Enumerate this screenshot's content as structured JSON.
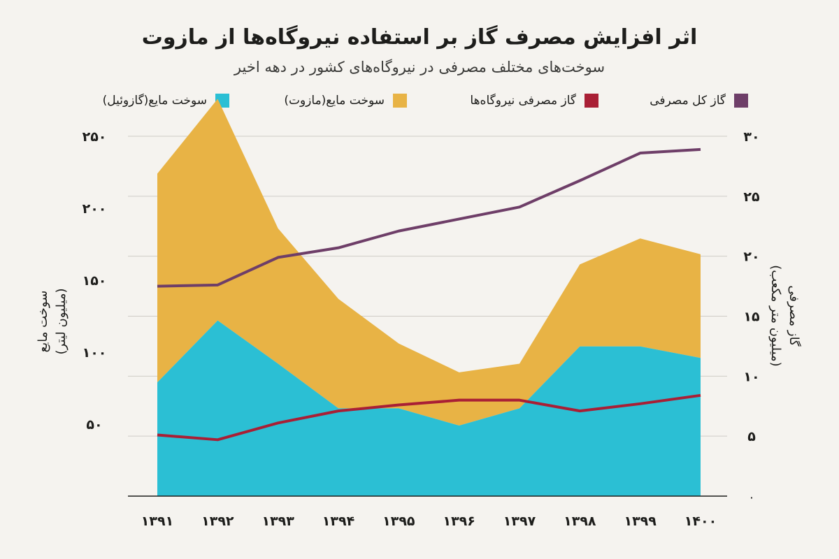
{
  "title": "اثر افزایش مصرف گاز بر استفاده نیروگاه‌ها از مازوت",
  "subtitle": "سوخت‌های مختلف مصرفی در نیروگاه‌های کشور در دهه اخیر",
  "legend": [
    {
      "label": "گاز کل مصرفی",
      "color": "#6e3e68"
    },
    {
      "label": "گاز مصرفی نیروگاه‌ها",
      "color": "#a91f35"
    },
    {
      "label": "سوخت مایع(مازوت)",
      "color": "#e8b345"
    },
    {
      "label": "سوخت مایع(گازوئیل)",
      "color": "#2bbfd4"
    }
  ],
  "left_axis_title": [
    "سوخت مایع",
    "(میلیون لیتر)"
  ],
  "right_axis_title": [
    "گاز مصرفی",
    "(میلیون متر مکعب)"
  ],
  "chart_data": {
    "type": "area",
    "x": [
      "۱۳۹۱",
      "۱۳۹۲",
      "۱۳۹۳",
      "۱۳۹۴",
      "۱۳۹۵",
      "۱۳۹۶",
      "۱۳۹۷",
      "۱۳۹۸",
      "۱۳۹۹",
      "۱۴۰۰"
    ],
    "left_axis": {
      "ylim": [
        0,
        250
      ],
      "ticks": [
        50,
        100,
        150,
        200,
        250
      ],
      "tick_labels": [
        "۵۰",
        "۱۰۰",
        "۱۵۰",
        "۲۰۰",
        "۲۵۰"
      ]
    },
    "right_axis": {
      "ylim": [
        0,
        30
      ],
      "ticks": [
        0,
        5,
        10,
        15,
        20,
        25,
        30
      ],
      "tick_labels": [
        "۰",
        "۵",
        "۱۰",
        "۱۵",
        "۲۰",
        "۲۵",
        "۳۰"
      ]
    },
    "series": [
      {
        "name": "سوخت مایع(گازوئیل)",
        "kind": "area",
        "axis": "left",
        "color": "#2bbfd4",
        "values": [
          79,
          122,
          92,
          61,
          61,
          49,
          61,
          104,
          104,
          96
        ]
      },
      {
        "name": "سوخت مایع(مازوت)",
        "kind": "stacked-area",
        "axis": "left",
        "color": "#e8b345",
        "values": [
          145,
          154,
          94,
          76,
          45,
          37,
          31,
          57,
          75,
          72
        ]
      },
      {
        "name": "گاز کل مصرفی",
        "kind": "line",
        "axis": "right",
        "color": "#6e3e68",
        "values": [
          17.5,
          17.6,
          19.9,
          20.7,
          22.1,
          23.1,
          24.1,
          26.3,
          28.6,
          28.9
        ]
      },
      {
        "name": "گاز مصرفی نیروگاه‌ها",
        "kind": "line",
        "axis": "right",
        "color": "#a91f35",
        "values": [
          5.1,
          4.7,
          6.1,
          7.1,
          7.6,
          8.0,
          8.0,
          7.1,
          7.7,
          8.4
        ]
      }
    ],
    "grid": true
  }
}
